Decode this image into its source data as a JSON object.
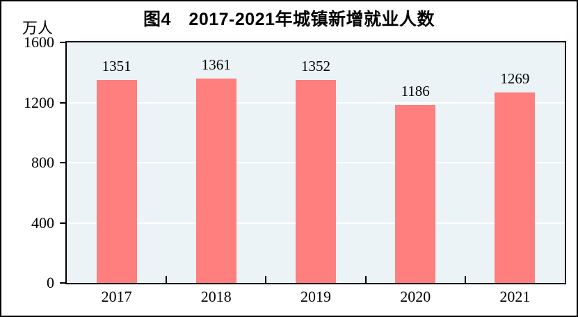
{
  "figure": {
    "title": "图4　2017-2021年城镇新增就业人数",
    "unit_label": "万人"
  },
  "colors": {
    "bar": "#FF7E7E",
    "plot_background": "#EBF3F6",
    "gridline": "#FFFFFF",
    "axis": "#000000",
    "text": "#000000"
  },
  "chart_data": {
    "type": "bar",
    "title": "图4　2017-2021年城镇新增就业人数",
    "categories": [
      "2017",
      "2018",
      "2019",
      "2020",
      "2021"
    ],
    "values": [
      1351,
      1361,
      1352,
      1186,
      1269
    ],
    "bar_labels": [
      "1351",
      "1361",
      "1352",
      "1186",
      "1269"
    ],
    "xlabel": "",
    "ylabel": "万人",
    "ylim": [
      0,
      1600
    ],
    "yticks": [
      0,
      400,
      800,
      1200,
      1600
    ],
    "grid": "horizontal white gridlines at y-ticks",
    "legend": "none"
  }
}
